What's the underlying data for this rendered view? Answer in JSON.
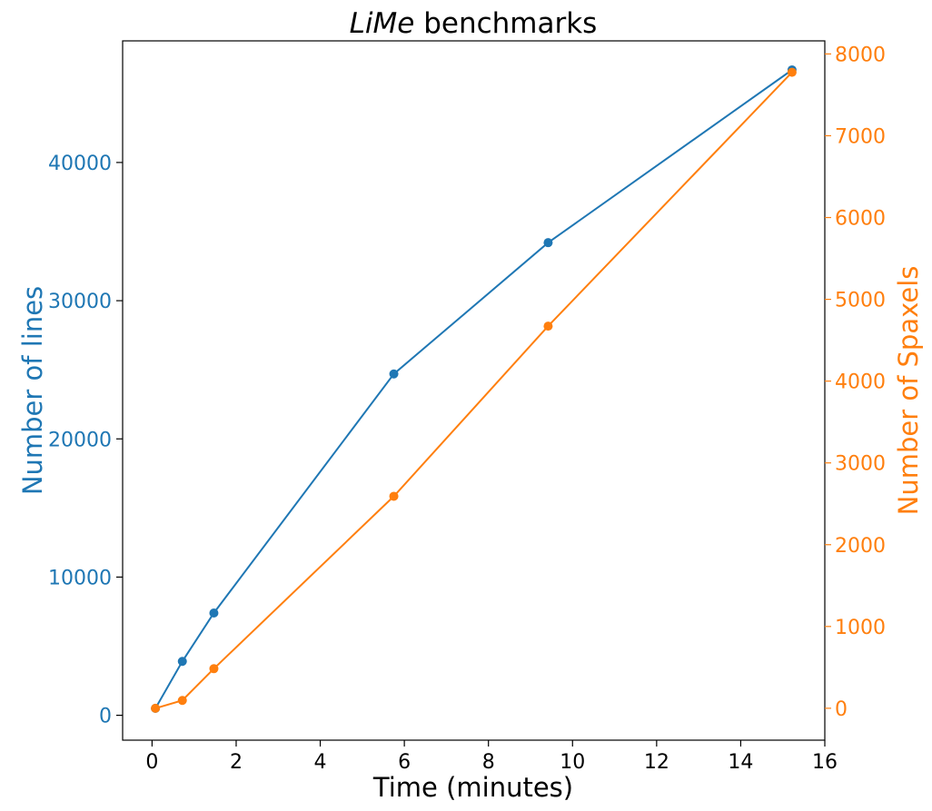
{
  "chart_data": {
    "type": "line",
    "title": {
      "italic_part": "LiMe",
      "rest": " benchmarks"
    },
    "xlabel": "Time (minutes)",
    "xlim": [
      -0.7,
      16.0
    ],
    "xticks": [
      0,
      2,
      4,
      6,
      8,
      10,
      12,
      14,
      16
    ],
    "axes": {
      "left": {
        "label": "Number of lines",
        "color": "#1f77b4",
        "ylim": [
          -1800,
          48800
        ],
        "ticks": [
          0,
          10000,
          20000,
          30000,
          40000
        ]
      },
      "right": {
        "label": "Number of Spaxels",
        "color": "#ff7f0e",
        "ylim": [
          -390,
          8160
        ],
        "ticks": [
          0,
          1000,
          2000,
          3000,
          4000,
          5000,
          6000,
          7000,
          8000
        ]
      }
    },
    "series": [
      {
        "axis": "left",
        "color": "#1f77b4",
        "x": [
          0.08,
          0.72,
          1.47,
          5.75,
          9.42,
          15.22
        ],
        "y": [
          500,
          3900,
          7400,
          24700,
          34200,
          46700
        ]
      },
      {
        "axis": "right",
        "color": "#ff7f0e",
        "x": [
          0.08,
          0.72,
          1.47,
          5.75,
          9.42,
          15.22
        ],
        "y": [
          0,
          96,
          484,
          2592,
          4672,
          7776
        ]
      }
    ],
    "grid": false,
    "legend": "none"
  }
}
